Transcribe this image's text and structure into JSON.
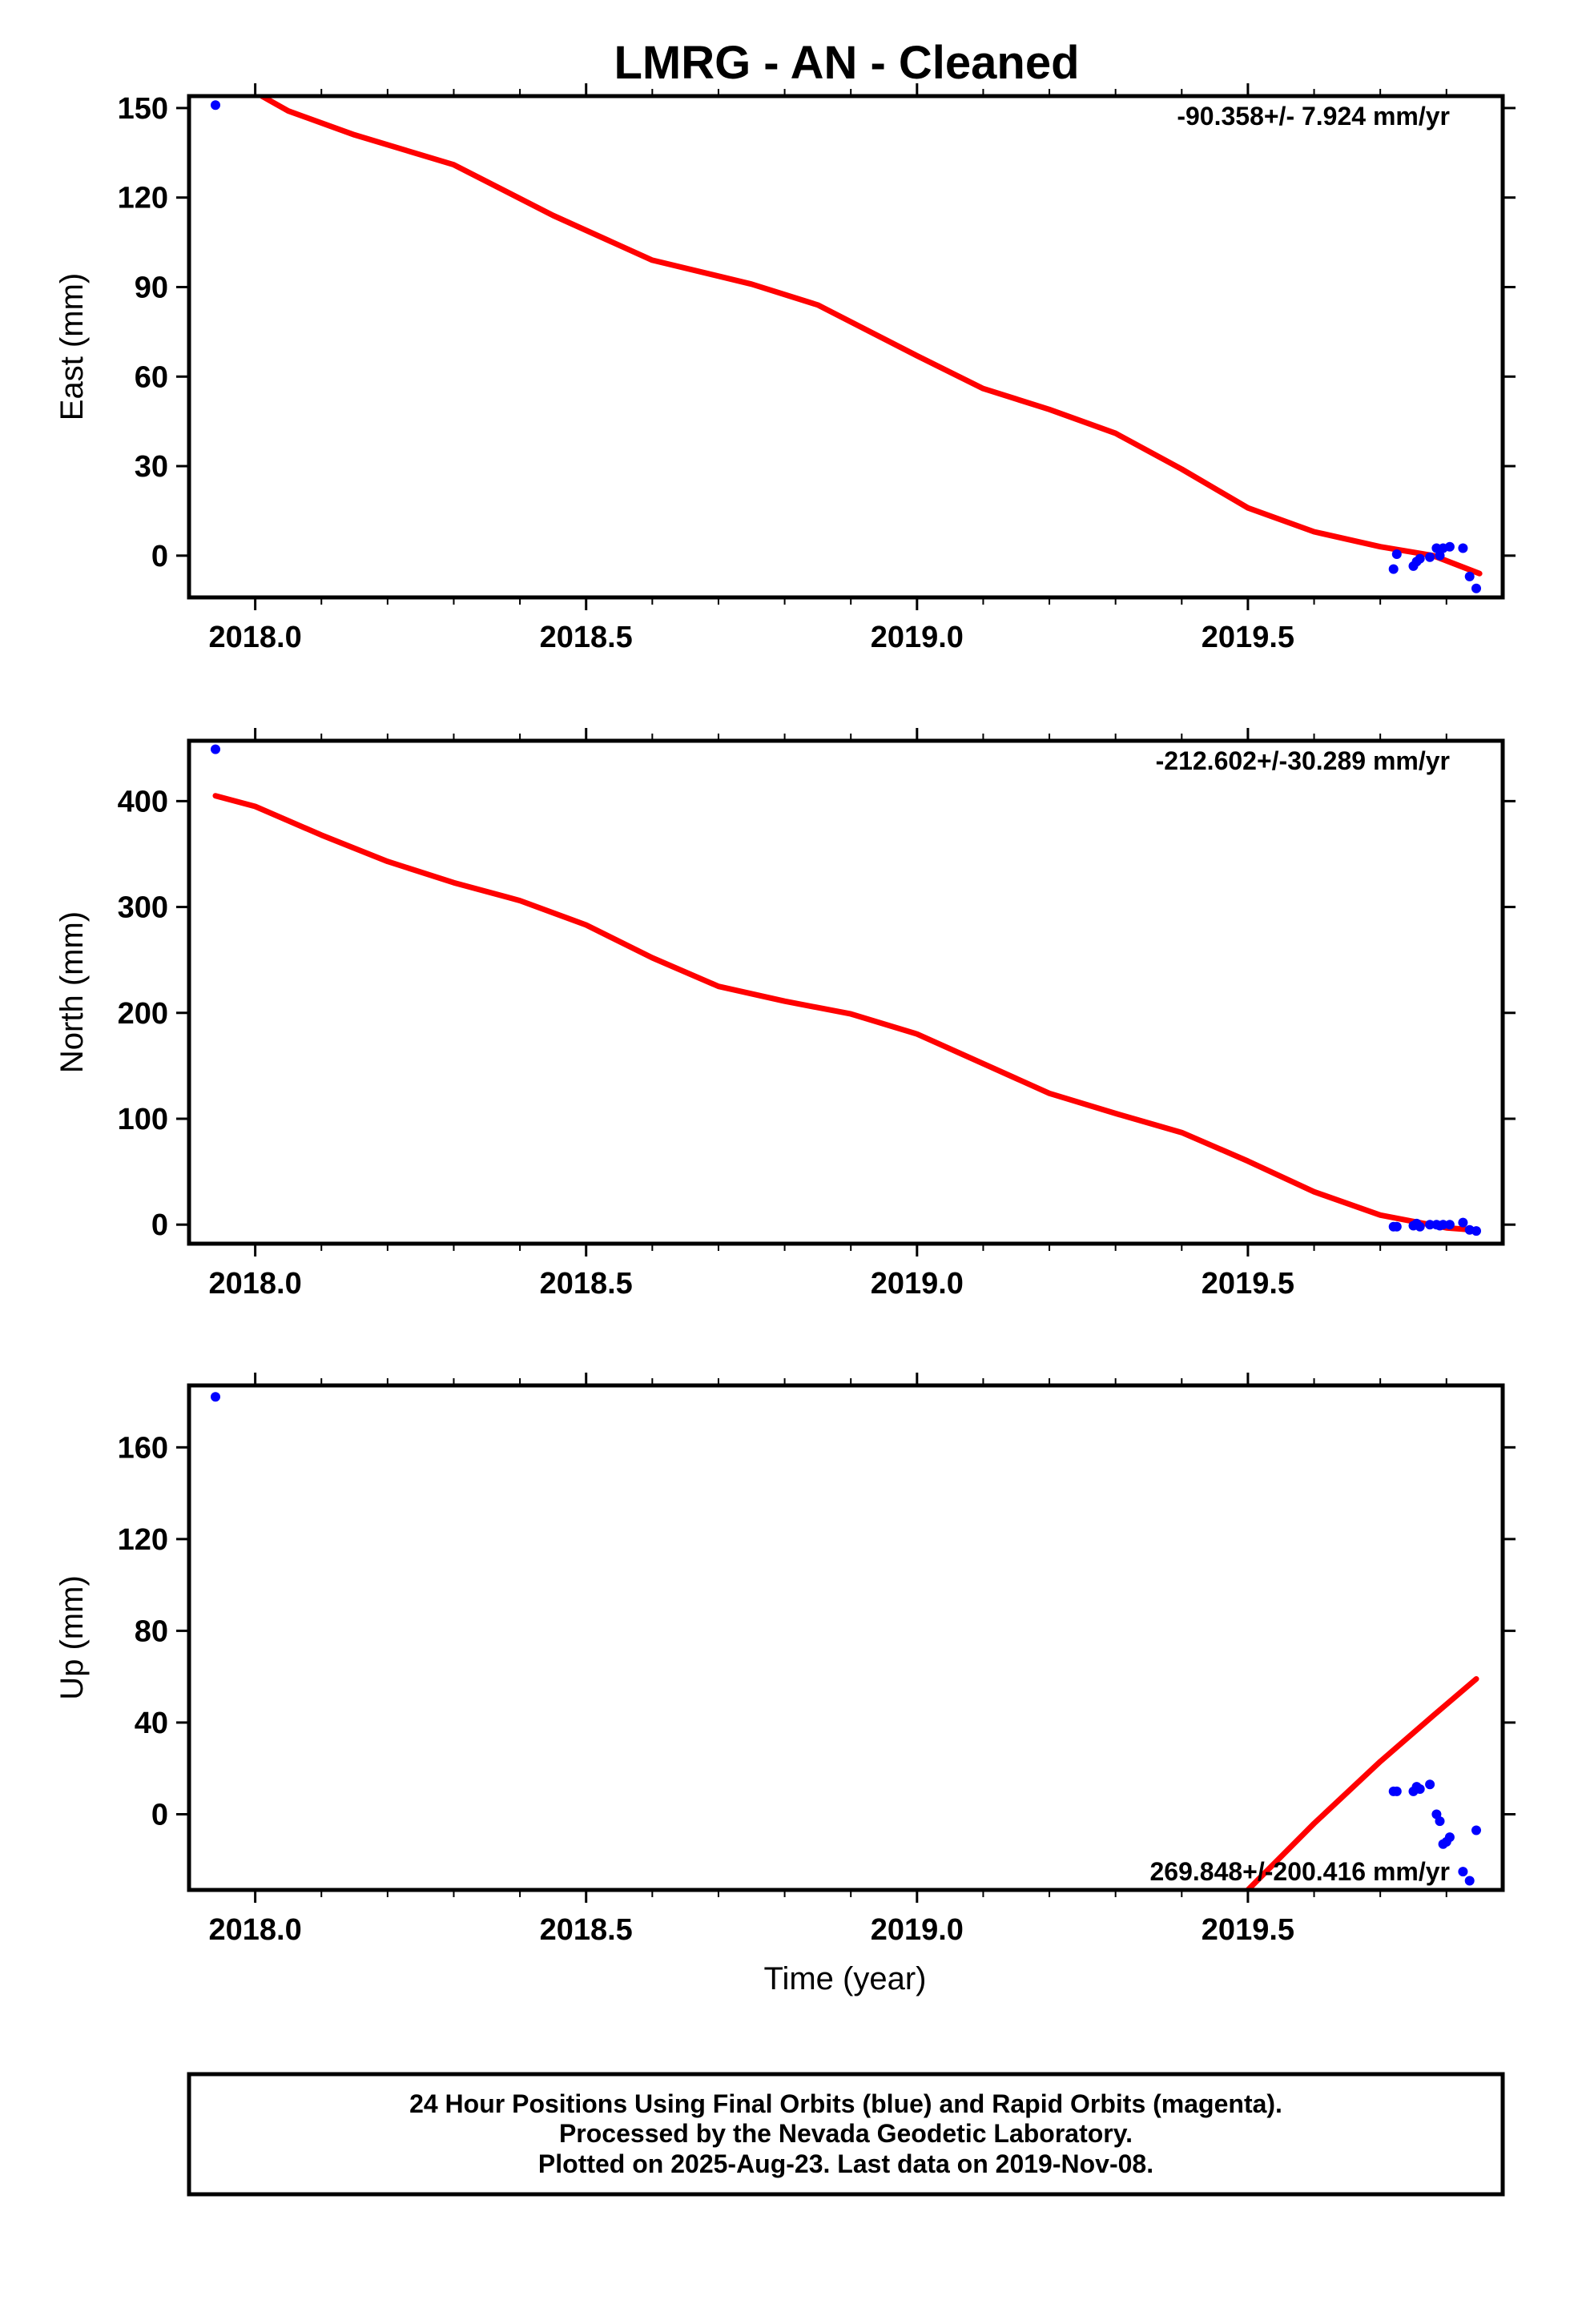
{
  "title": "LMRG  - AN - Cleaned",
  "xlabel": "Time (year)",
  "colors": {
    "points": "#0000ff",
    "fit": "#ff0000",
    "frame": "#000000"
  },
  "footer": {
    "line1": "24 Hour Positions Using Final Orbits (blue) and Rapid Orbits (magenta).",
    "line2": "Processed by the Nevada Geodetic Laboratory.",
    "line3": "Plotted on 2025-Aug-23. Last data on 2019-Nov-08."
  },
  "chart_data": [
    {
      "type": "scatter",
      "ylabel": "East (mm)",
      "rate_label": "-90.358+/- 7.924 mm/yr",
      "xlim": [
        2017.9,
        2019.885
      ],
      "ylim": [
        -14,
        154
      ],
      "xticks": [
        "2018.0",
        "2018.5",
        "2019.0",
        "2019.5"
      ],
      "yticks": [
        "0",
        "30",
        "60",
        "90",
        "120",
        "150"
      ],
      "series": [
        {
          "points": [
            [
              2017.94,
              151
            ],
            [
              2019.72,
              -4.5
            ],
            [
              2019.725,
              0.5
            ],
            [
              2019.75,
              -3.5
            ],
            [
              2019.755,
              -2
            ],
            [
              2019.76,
              -1
            ],
            [
              2019.775,
              -0.5
            ],
            [
              2019.785,
              2.5
            ],
            [
              2019.79,
              0
            ],
            [
              2019.795,
              2.5
            ],
            [
              2019.805,
              3
            ],
            [
              2019.825,
              2.5
            ],
            [
              2019.835,
              -7
            ],
            [
              2019.845,
              -11
            ]
          ]
        },
        {
          "line": [
            [
              2018.01,
              154
            ],
            [
              2018.05,
              149
            ],
            [
              2018.15,
              141
            ],
            [
              2018.3,
              131
            ],
            [
              2018.45,
              114
            ],
            [
              2018.6,
              99
            ],
            [
              2018.75,
              91
            ],
            [
              2018.85,
              84
            ],
            [
              2019.0,
              67
            ],
            [
              2019.1,
              56
            ],
            [
              2019.2,
              49
            ],
            [
              2019.3,
              41
            ],
            [
              2019.4,
              29
            ],
            [
              2019.5,
              16
            ],
            [
              2019.6,
              8
            ],
            [
              2019.7,
              3
            ],
            [
              2019.78,
              0
            ],
            [
              2019.85,
              -6
            ]
          ]
        }
      ]
    },
    {
      "type": "scatter",
      "ylabel": "North (mm)",
      "rate_label": "-212.602+/-30.289 mm/yr",
      "xlim": [
        2017.9,
        2019.885
      ],
      "ylim": [
        -18,
        457
      ],
      "xticks": [
        "2018.0",
        "2018.5",
        "2019.0",
        "2019.5"
      ],
      "yticks": [
        "0",
        "100",
        "200",
        "300",
        "400"
      ],
      "series": [
        {
          "points": [
            [
              2017.94,
              449
            ],
            [
              2019.72,
              -2
            ],
            [
              2019.725,
              -2
            ],
            [
              2019.75,
              -1
            ],
            [
              2019.755,
              1
            ],
            [
              2019.76,
              -2
            ],
            [
              2019.775,
              0
            ],
            [
              2019.785,
              0
            ],
            [
              2019.79,
              -1
            ],
            [
              2019.795,
              0
            ],
            [
              2019.805,
              0
            ],
            [
              2019.825,
              2
            ],
            [
              2019.835,
              -5
            ],
            [
              2019.845,
              -6
            ]
          ]
        },
        {
          "line": [
            [
              2017.94,
              405
            ],
            [
              2018.0,
              395
            ],
            [
              2018.1,
              368
            ],
            [
              2018.2,
              343
            ],
            [
              2018.3,
              323
            ],
            [
              2018.4,
              306
            ],
            [
              2018.5,
              283
            ],
            [
              2018.6,
              252
            ],
            [
              2018.7,
              225
            ],
            [
              2018.8,
              211
            ],
            [
              2018.9,
              199
            ],
            [
              2019.0,
              180
            ],
            [
              2019.1,
              152
            ],
            [
              2019.2,
              124
            ],
            [
              2019.3,
              105
            ],
            [
              2019.4,
              87
            ],
            [
              2019.5,
              60
            ],
            [
              2019.6,
              31
            ],
            [
              2019.7,
              9
            ],
            [
              2019.8,
              -3
            ],
            [
              2019.84,
              -5
            ]
          ]
        }
      ]
    },
    {
      "type": "scatter",
      "ylabel": "Up (mm)",
      "rate_label": "269.848+/-200.416 mm/yr",
      "xlim": [
        2017.9,
        2019.885
      ],
      "ylim": [
        -33,
        187
      ],
      "xticks": [
        "2018.0",
        "2018.5",
        "2019.0",
        "2019.5"
      ],
      "yticks": [
        "0",
        "40",
        "80",
        "120",
        "160"
      ],
      "series": [
        {
          "points": [
            [
              2017.94,
              182
            ],
            [
              2019.72,
              10
            ],
            [
              2019.725,
              10
            ],
            [
              2019.75,
              10
            ],
            [
              2019.755,
              12
            ],
            [
              2019.76,
              11
            ],
            [
              2019.775,
              13
            ],
            [
              2019.785,
              0
            ],
            [
              2019.79,
              -3
            ],
            [
              2019.795,
              -13
            ],
            [
              2019.8,
              -12
            ],
            [
              2019.805,
              -10
            ],
            [
              2019.825,
              -25
            ],
            [
              2019.835,
              -29
            ],
            [
              2019.845,
              -7
            ]
          ]
        },
        {
          "line": [
            [
              2019.5,
              -33
            ],
            [
              2019.6,
              -4
            ],
            [
              2019.7,
              23
            ],
            [
              2019.78,
              43
            ],
            [
              2019.845,
              59
            ]
          ]
        }
      ]
    }
  ]
}
